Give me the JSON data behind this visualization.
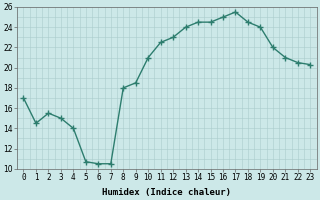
{
  "x": [
    0,
    1,
    2,
    3,
    4,
    5,
    6,
    7,
    8,
    9,
    10,
    11,
    12,
    13,
    14,
    15,
    16,
    17,
    18,
    19,
    20,
    21,
    22,
    23
  ],
  "y": [
    17,
    14.5,
    15.5,
    15,
    14,
    10.7,
    10.5,
    10.5,
    18,
    18.5,
    21,
    22.5,
    23,
    24,
    24.5,
    24.5,
    25,
    25.5,
    24.5,
    24,
    22,
    21,
    20.5,
    20.3
  ],
  "line_color": "#2d7d6e",
  "marker": "+",
  "marker_size": 4,
  "bg_color": "#cce8e8",
  "grid_color": "#aacccc",
  "xlabel": "Humidex (Indice chaleur)",
  "ylim": [
    10,
    26
  ],
  "xlim": [
    -0.5,
    23.5
  ],
  "yticks": [
    10,
    12,
    14,
    16,
    18,
    20,
    22,
    24,
    26
  ],
  "xticks": [
    0,
    1,
    2,
    3,
    4,
    5,
    6,
    7,
    8,
    9,
    10,
    11,
    12,
    13,
    14,
    15,
    16,
    17,
    18,
    19,
    20,
    21,
    22,
    23
  ],
  "xtick_labels": [
    "0",
    "1",
    "2",
    "3",
    "4",
    "5",
    "6",
    "7",
    "8",
    "9",
    "10",
    "11",
    "12",
    "13",
    "14",
    "15",
    "16",
    "17",
    "18",
    "19",
    "20",
    "21",
    "22",
    "23"
  ],
  "xlabel_fontsize": 6.5,
  "tick_fontsize": 5.5,
  "lw": 1.0
}
